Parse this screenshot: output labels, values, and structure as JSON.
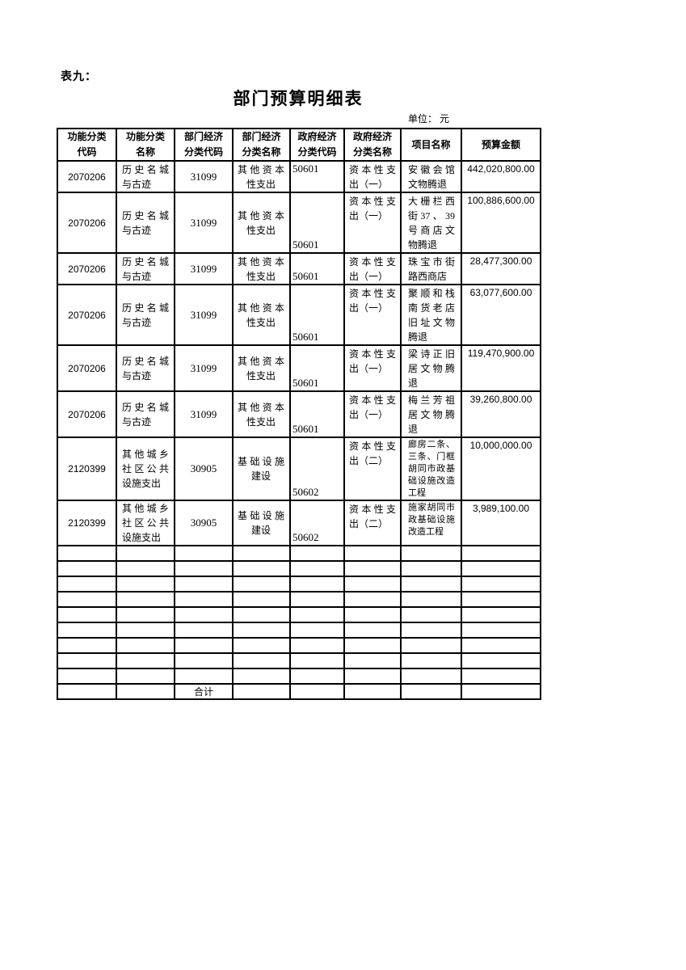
{
  "page": {
    "table_label": "表九：",
    "title": "部门预算明细表",
    "unit_note": "单位： 元"
  },
  "table": {
    "columns": [
      {
        "key": "func_code",
        "label": "功能分类\n代码"
      },
      {
        "key": "func_name",
        "label": "功能分类\n名称"
      },
      {
        "key": "dept_code",
        "label": "部门经济\n分类代码"
      },
      {
        "key": "dept_name",
        "label": "部门经济\n分类名称"
      },
      {
        "key": "gov_code",
        "label": "政府经济\n分类代码"
      },
      {
        "key": "gov_name",
        "label": "政府经济\n分类名称"
      },
      {
        "key": "project",
        "label": "项目名称"
      },
      {
        "key": "amount",
        "label": "预算金额"
      }
    ],
    "rows": [
      {
        "func_code": "2070206",
        "func_name": "历史名城与古迹",
        "dept_code": "31099",
        "dept_name": "其他资本性支出",
        "gov_code": "50601",
        "gov_name": "资本性支出（一）",
        "project": "安徽会馆文物腾退",
        "amount": "442,020,800.00"
      },
      {
        "func_code": "2070206",
        "func_name": "历史名城与古迹",
        "dept_code": "31099",
        "dept_name": "其他资本性支出",
        "gov_code": "50601",
        "gov_name": "资本性支出（一）",
        "project": "大栅栏西街37、39号商店文物腾退",
        "amount": "100,886,600.00"
      },
      {
        "func_code": "2070206",
        "func_name": "历史名城与古迹",
        "dept_code": "31099",
        "dept_name": "其他资本性支出",
        "gov_code": "50601",
        "gov_name": "资本性支出（一）",
        "project": "珠宝市街路西商店",
        "amount": "28,477,300.00"
      },
      {
        "func_code": "2070206",
        "func_name": "历史名城与古迹",
        "dept_code": "31099",
        "dept_name": "其他资本性支出",
        "gov_code": "50601",
        "gov_name": "资本性支出（一）",
        "project": "聚顺和栈南货老店旧址文物腾退",
        "amount": "63,077,600.00"
      },
      {
        "func_code": "2070206",
        "func_name": "历史名城与古迹",
        "dept_code": "31099",
        "dept_name": "其他资本性支出",
        "gov_code": "50601",
        "gov_name": "资本性支出（一）",
        "project": "梁诗正旧居文物腾退",
        "amount": "119,470,900.00"
      },
      {
        "func_code": "2070206",
        "func_name": "历史名城与古迹",
        "dept_code": "31099",
        "dept_name": "其他资本性支出",
        "gov_code": "50601",
        "gov_name": "资本性支出（一）",
        "project": "梅兰芳祖居文物腾退",
        "amount": "39,260,800.00"
      },
      {
        "func_code": "2120399",
        "func_name": "其他城乡社区公共设施支出",
        "dept_code": "30905",
        "dept_name": "基础设施建设",
        "gov_code": "50602",
        "gov_name": "资本性支出（二）",
        "project": "廊房二条、三条、门框胡同市政基础设施改造工程",
        "amount": "10,000,000.00"
      },
      {
        "func_code": "2120399",
        "func_name": "其他城乡社区公共设施支出",
        "dept_code": "30905",
        "dept_name": "基础设施建设",
        "gov_code": "50602",
        "gov_name": "资本性支出（二）",
        "project": "施家胡同市政基础设施改造工程",
        "amount": "3,989,100.00"
      }
    ],
    "empty_row_count": 9,
    "total_row": {
      "label": "合计"
    }
  }
}
